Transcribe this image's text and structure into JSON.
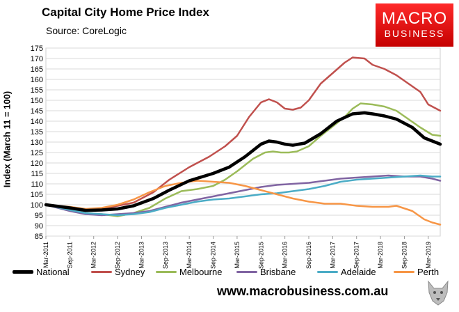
{
  "header": {
    "title": "Capital City Home Price Index",
    "source": "Source: CoreLogic"
  },
  "logo": {
    "line1": "MACRO",
    "line2": "BUSINESS"
  },
  "footer": {
    "url": "www.macrobusiness.com.au"
  },
  "colors": {
    "National": "#000000",
    "Sydney": "#c0504d",
    "Melbourne": "#9bbb59",
    "Brisbane": "#8064a2",
    "Adelaide": "#4bacc6",
    "Perth": "#f79646"
  },
  "chart_data": {
    "type": "line",
    "title": "Capital City Home Price Index",
    "xlabel": "",
    "ylabel": "Index (March 11 = 100)",
    "ylim": [
      85,
      175
    ],
    "yticks": [
      85,
      90,
      95,
      100,
      105,
      110,
      115,
      120,
      125,
      130,
      135,
      140,
      145,
      150,
      155,
      160,
      165,
      170,
      175
    ],
    "xlim": [
      0,
      99
    ],
    "x_ticks": [
      {
        "m": 0,
        "label": "Mar-2011"
      },
      {
        "m": 6,
        "label": "Sep-2011"
      },
      {
        "m": 12,
        "label": "Mar-2012"
      },
      {
        "m": 18,
        "label": "Sep-2012"
      },
      {
        "m": 24,
        "label": "Mar-2013"
      },
      {
        "m": 30,
        "label": "Sep-2013"
      },
      {
        "m": 36,
        "label": "Mar-2014"
      },
      {
        "m": 42,
        "label": "Sep-2014"
      },
      {
        "m": 48,
        "label": "Mar-2015"
      },
      {
        "m": 54,
        "label": "Sep-2015"
      },
      {
        "m": 60,
        "label": "Mar-2016"
      },
      {
        "m": 66,
        "label": "Sep-2016"
      },
      {
        "m": 72,
        "label": "Mar-2017"
      },
      {
        "m": 78,
        "label": "Sep-2017"
      },
      {
        "m": 84,
        "label": "Mar-2018"
      },
      {
        "m": 90,
        "label": "Sep-2018"
      },
      {
        "m": 96,
        "label": "Mar-2019"
      }
    ],
    "legend_position": "bottom",
    "series": [
      {
        "name": "National",
        "points": [
          [
            0,
            100
          ],
          [
            6,
            98.5
          ],
          [
            10,
            97.3
          ],
          [
            14,
            97.5
          ],
          [
            18,
            98
          ],
          [
            22,
            99.5
          ],
          [
            27,
            103
          ],
          [
            31,
            107
          ],
          [
            36,
            111.5
          ],
          [
            42,
            115
          ],
          [
            46,
            118
          ],
          [
            50,
            123
          ],
          [
            54,
            129
          ],
          [
            56,
            130.5
          ],
          [
            58,
            130
          ],
          [
            60,
            129
          ],
          [
            62,
            128.5
          ],
          [
            65,
            129.5
          ],
          [
            69,
            134
          ],
          [
            73,
            140
          ],
          [
            77,
            143.5
          ],
          [
            80,
            144
          ],
          [
            82,
            143.5
          ],
          [
            85,
            142.5
          ],
          [
            88,
            141
          ],
          [
            92,
            137
          ],
          [
            95,
            132
          ],
          [
            99,
            129
          ]
        ]
      },
      {
        "name": "Sydney",
        "points": [
          [
            0,
            100
          ],
          [
            6,
            98.5
          ],
          [
            10,
            97.5
          ],
          [
            14,
            98
          ],
          [
            18,
            99.5
          ],
          [
            22,
            101
          ],
          [
            27,
            106
          ],
          [
            31,
            112
          ],
          [
            36,
            118
          ],
          [
            41,
            123
          ],
          [
            45,
            128
          ],
          [
            48,
            133
          ],
          [
            51,
            142
          ],
          [
            54,
            149
          ],
          [
            56,
            150.5
          ],
          [
            58,
            149
          ],
          [
            60,
            146
          ],
          [
            62,
            145.5
          ],
          [
            64,
            146.5
          ],
          [
            66,
            150
          ],
          [
            69,
            158
          ],
          [
            72,
            163
          ],
          [
            75,
            168
          ],
          [
            77,
            170.5
          ],
          [
            80,
            170
          ],
          [
            82,
            167
          ],
          [
            85,
            165
          ],
          [
            88,
            162
          ],
          [
            91,
            158
          ],
          [
            94,
            154
          ],
          [
            96,
            148
          ],
          [
            99,
            145
          ]
        ]
      },
      {
        "name": "Melbourne",
        "points": [
          [
            0,
            100
          ],
          [
            6,
            97.5
          ],
          [
            10,
            96
          ],
          [
            14,
            95.5
          ],
          [
            18,
            94.5
          ],
          [
            22,
            96
          ],
          [
            26,
            98.5
          ],
          [
            30,
            103
          ],
          [
            34,
            106.5
          ],
          [
            38,
            107.5
          ],
          [
            42,
            109
          ],
          [
            45,
            112
          ],
          [
            48,
            116
          ],
          [
            52,
            122
          ],
          [
            55,
            125
          ],
          [
            57,
            125.5
          ],
          [
            59,
            125
          ],
          [
            61,
            125
          ],
          [
            63,
            125.5
          ],
          [
            66,
            128
          ],
          [
            69,
            133
          ],
          [
            72,
            137.5
          ],
          [
            75,
            142
          ],
          [
            77,
            146
          ],
          [
            79,
            148.5
          ],
          [
            82,
            148
          ],
          [
            85,
            147
          ],
          [
            88,
            145
          ],
          [
            91,
            141
          ],
          [
            94,
            137
          ],
          [
            97,
            133.5
          ],
          [
            99,
            133
          ]
        ]
      },
      {
        "name": "Brisbane",
        "points": [
          [
            0,
            100
          ],
          [
            6,
            97
          ],
          [
            10,
            95.5
          ],
          [
            14,
            95
          ],
          [
            18,
            95.5
          ],
          [
            22,
            96
          ],
          [
            26,
            97
          ],
          [
            30,
            99
          ],
          [
            34,
            101
          ],
          [
            38,
            102.5
          ],
          [
            42,
            104
          ],
          [
            46,
            105.5
          ],
          [
            50,
            107
          ],
          [
            54,
            108.5
          ],
          [
            58,
            109.5
          ],
          [
            62,
            110
          ],
          [
            66,
            110.5
          ],
          [
            70,
            111.5
          ],
          [
            74,
            112.5
          ],
          [
            78,
            113
          ],
          [
            82,
            113.5
          ],
          [
            86,
            114
          ],
          [
            90,
            113.5
          ],
          [
            94,
            113.5
          ],
          [
            97,
            112.5
          ],
          [
            99,
            111.5
          ]
        ]
      },
      {
        "name": "Adelaide",
        "points": [
          [
            0,
            100
          ],
          [
            6,
            97.5
          ],
          [
            10,
            96
          ],
          [
            14,
            95.5
          ],
          [
            18,
            95
          ],
          [
            22,
            95.5
          ],
          [
            26,
            96.5
          ],
          [
            30,
            98.5
          ],
          [
            34,
            100
          ],
          [
            38,
            101.5
          ],
          [
            42,
            102.5
          ],
          [
            46,
            103
          ],
          [
            50,
            104
          ],
          [
            54,
            105
          ],
          [
            58,
            105.5
          ],
          [
            62,
            106.5
          ],
          [
            66,
            107.5
          ],
          [
            70,
            109
          ],
          [
            74,
            111
          ],
          [
            78,
            112
          ],
          [
            82,
            112.5
          ],
          [
            86,
            113
          ],
          [
            90,
            113.5
          ],
          [
            94,
            114
          ],
          [
            97,
            113.5
          ],
          [
            99,
            113.5
          ]
        ]
      },
      {
        "name": "Perth",
        "points": [
          [
            0,
            100
          ],
          [
            6,
            99
          ],
          [
            10,
            98
          ],
          [
            14,
            98.5
          ],
          [
            18,
            100
          ],
          [
            22,
            102.5
          ],
          [
            26,
            106
          ],
          [
            30,
            109
          ],
          [
            34,
            110.5
          ],
          [
            38,
            111.5
          ],
          [
            42,
            111
          ],
          [
            46,
            110.5
          ],
          [
            50,
            109
          ],
          [
            54,
            107
          ],
          [
            58,
            105
          ],
          [
            62,
            103
          ],
          [
            66,
            101.5
          ],
          [
            70,
            100.5
          ],
          [
            74,
            100.5
          ],
          [
            78,
            99.5
          ],
          [
            82,
            99
          ],
          [
            86,
            99
          ],
          [
            88,
            99.5
          ],
          [
            92,
            97
          ],
          [
            95,
            93
          ],
          [
            97,
            91.5
          ],
          [
            99,
            90.5
          ]
        ]
      }
    ]
  }
}
